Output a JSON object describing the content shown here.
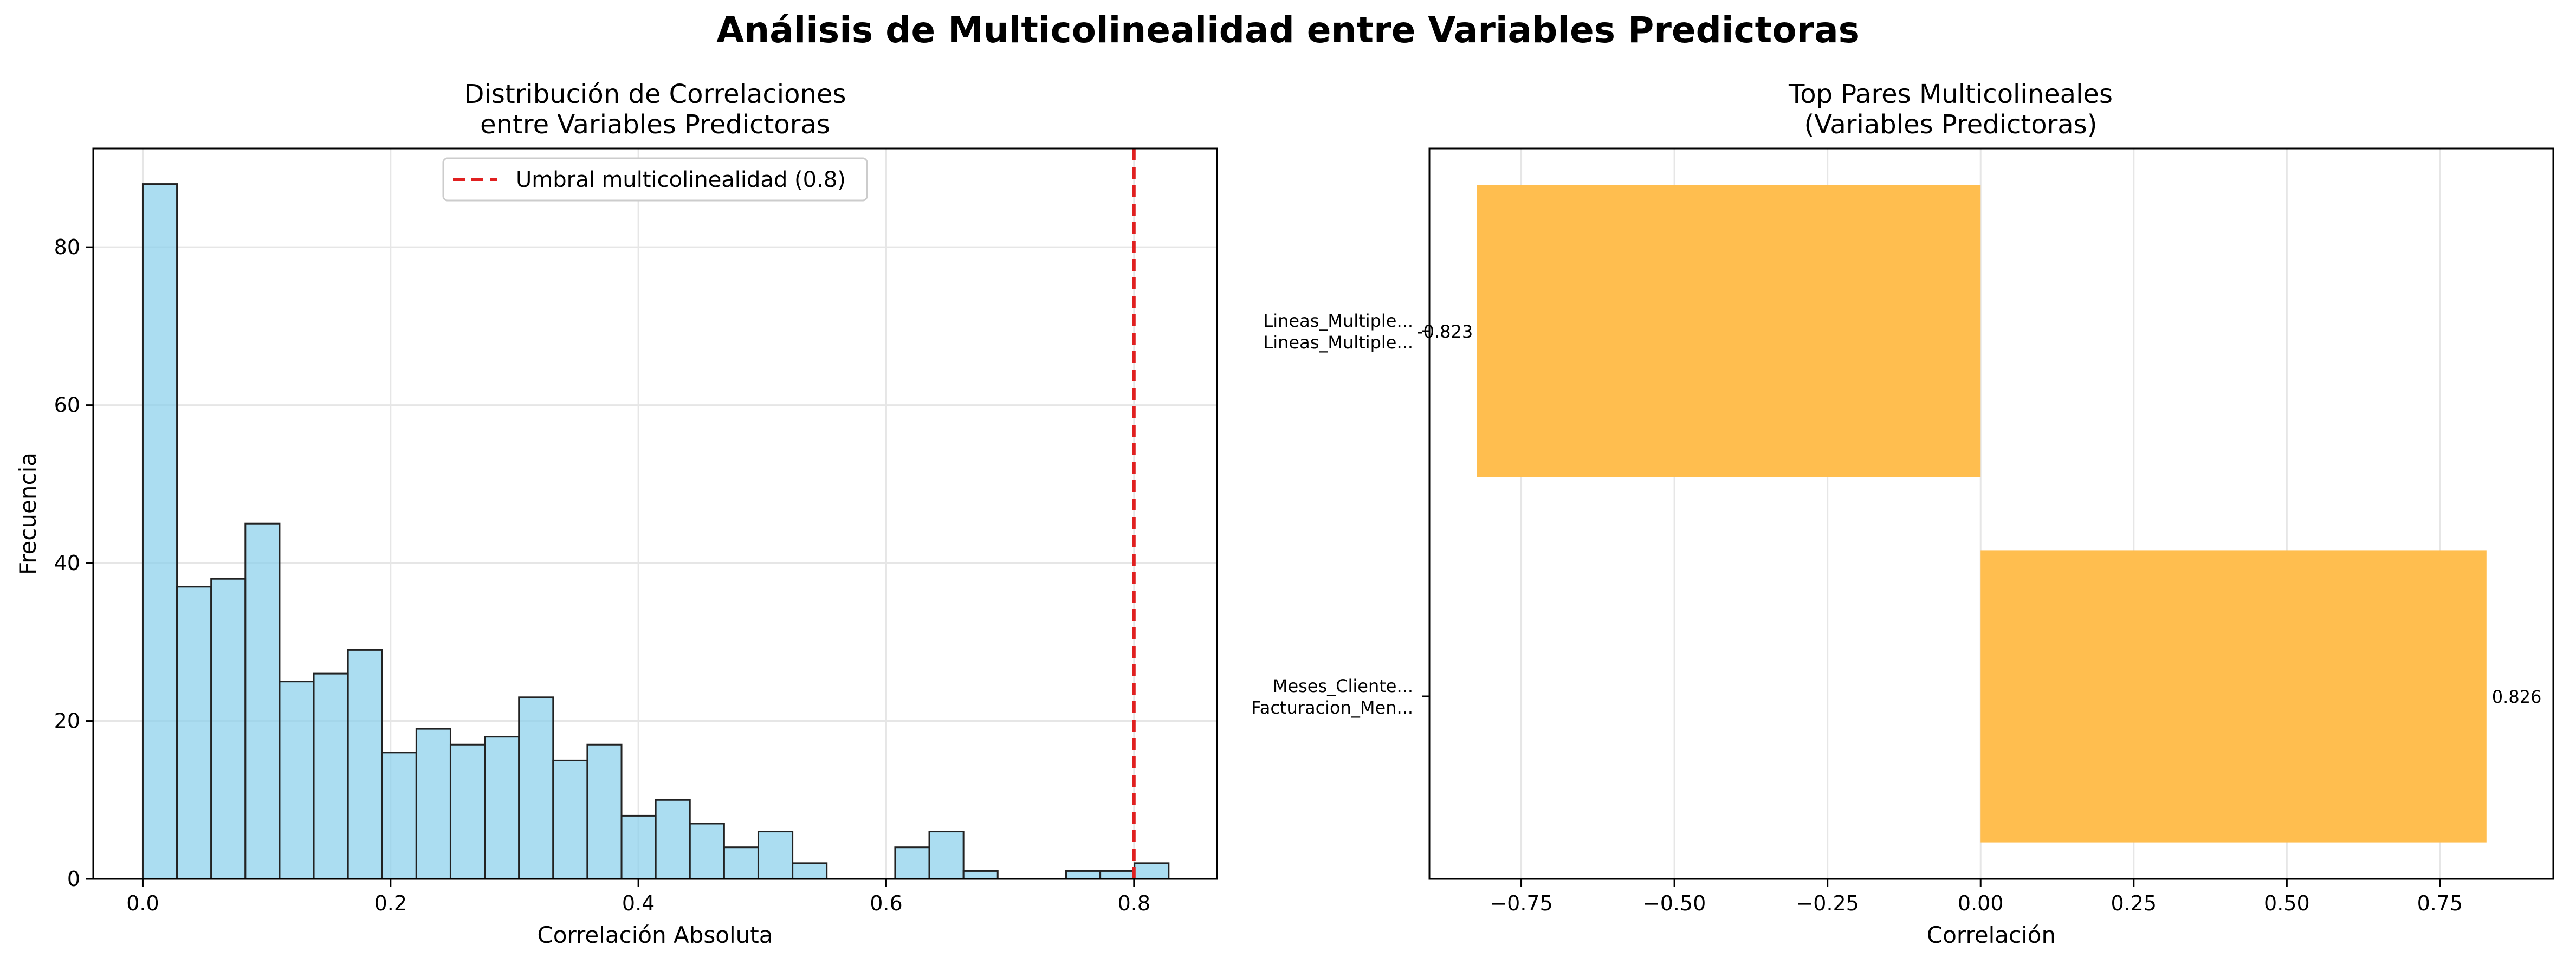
{
  "figure": {
    "title": "Análisis de Multicolinealidad entre Variables Predictoras"
  },
  "chart_data": [
    {
      "type": "bar",
      "subtype": "histogram",
      "title_lines": [
        "Distribución de Correlaciones",
        "entre Variables Predictoras"
      ],
      "xlabel": "Correlación Absoluta",
      "ylabel": "Frecuencia",
      "xlim": [
        -0.04,
        0.867
      ],
      "ylim": [
        0,
        92.5
      ],
      "xticks": [
        0.0,
        0.2,
        0.4,
        0.6,
        0.8
      ],
      "xtick_labels": [
        "0.0",
        "0.2",
        "0.4",
        "0.6",
        "0.8"
      ],
      "yticks": [
        0,
        20,
        40,
        60,
        80
      ],
      "ytick_labels": [
        "0",
        "20",
        "40",
        "60",
        "80"
      ],
      "grid": true,
      "bin_width": 0.0276,
      "bin_start": 0.0,
      "counts": [
        88,
        37,
        38,
        45,
        25,
        26,
        29,
        16,
        19,
        17,
        18,
        23,
        15,
        17,
        8,
        10,
        7,
        4,
        6,
        2,
        0,
        0,
        4,
        6,
        1,
        0,
        0,
        1,
        1,
        2
      ],
      "bar_color": "#87CEEB",
      "edge_color": "#222222",
      "threshold": {
        "value": 0.8,
        "label": "Umbral multicolinealidad (0.8)",
        "color": "#e02020"
      },
      "legend_position": "top-center"
    },
    {
      "type": "bar",
      "orientation": "horizontal",
      "title_lines": [
        "Top Pares Multicolineales",
        "(Variables Predictoras)"
      ],
      "xlabel": "Correlación",
      "xlim": [
        -0.9,
        0.935
      ],
      "xticks": [
        -0.75,
        -0.5,
        -0.25,
        0.0,
        0.25,
        0.5,
        0.75
      ],
      "xtick_labels": [
        "−0.75",
        "−0.50",
        "−0.25",
        "0.00",
        "0.25",
        "0.50",
        "0.75"
      ],
      "grid": true,
      "bar_color": "#FFBE4F",
      "bars": [
        {
          "label_lines": [
            "Lineas_Multiple...",
            "Lineas_Multiple..."
          ],
          "value": -0.823,
          "value_label": "-0.823"
        },
        {
          "label_lines": [
            "Meses_Cliente...",
            "Facturacion_Men..."
          ],
          "value": 0.826,
          "value_label": "0.826"
        }
      ]
    }
  ]
}
